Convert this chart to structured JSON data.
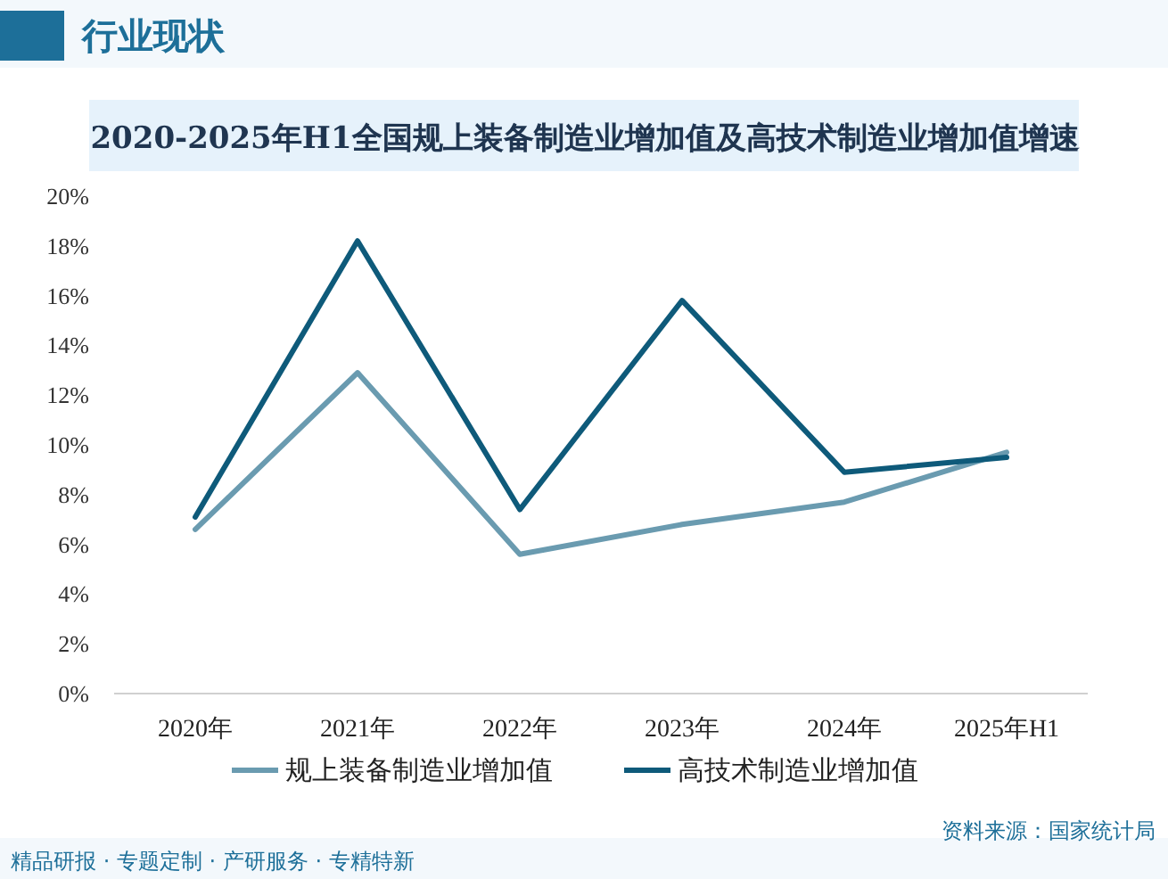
{
  "chart_data": {
    "type": "line",
    "title": "2020-2025年H1全国规上装备制造业增加值及高技术制造业增加值增速",
    "categories": [
      "2020年",
      "2021年",
      "2022年",
      "2023年",
      "2024年",
      "2025年H1"
    ],
    "series": [
      {
        "name": "规上装备制造业增加值",
        "color": "#6a9bb0",
        "values": [
          6.6,
          12.9,
          5.6,
          6.8,
          7.7,
          9.7
        ]
      },
      {
        "name": "高技术制造业增加值",
        "color": "#0e5a7a",
        "values": [
          7.1,
          18.2,
          7.4,
          15.8,
          8.9,
          9.5
        ]
      }
    ],
    "ylim": [
      0,
      20
    ],
    "yticks": [
      {
        "value": 0,
        "label": "0%"
      },
      {
        "value": 2,
        "label": "2%"
      },
      {
        "value": 4,
        "label": "4%"
      },
      {
        "value": 6,
        "label": "6%"
      },
      {
        "value": 8,
        "label": "8%"
      },
      {
        "value": 10,
        "label": "10%"
      },
      {
        "value": 12,
        "label": "12%"
      },
      {
        "value": 14,
        "label": "14%"
      },
      {
        "value": 16,
        "label": "16%"
      },
      {
        "value": 18,
        "label": "18%"
      },
      {
        "value": 20,
        "label": "20%"
      }
    ],
    "grid": false,
    "legend": "bottom",
    "marker": "none",
    "line_style": "solid",
    "annotations": [
      "行业现状",
      "精品研报 · 专题定制 · 产研服务 · 专精特新",
      "资料来源：国家统计局"
    ]
  }
}
